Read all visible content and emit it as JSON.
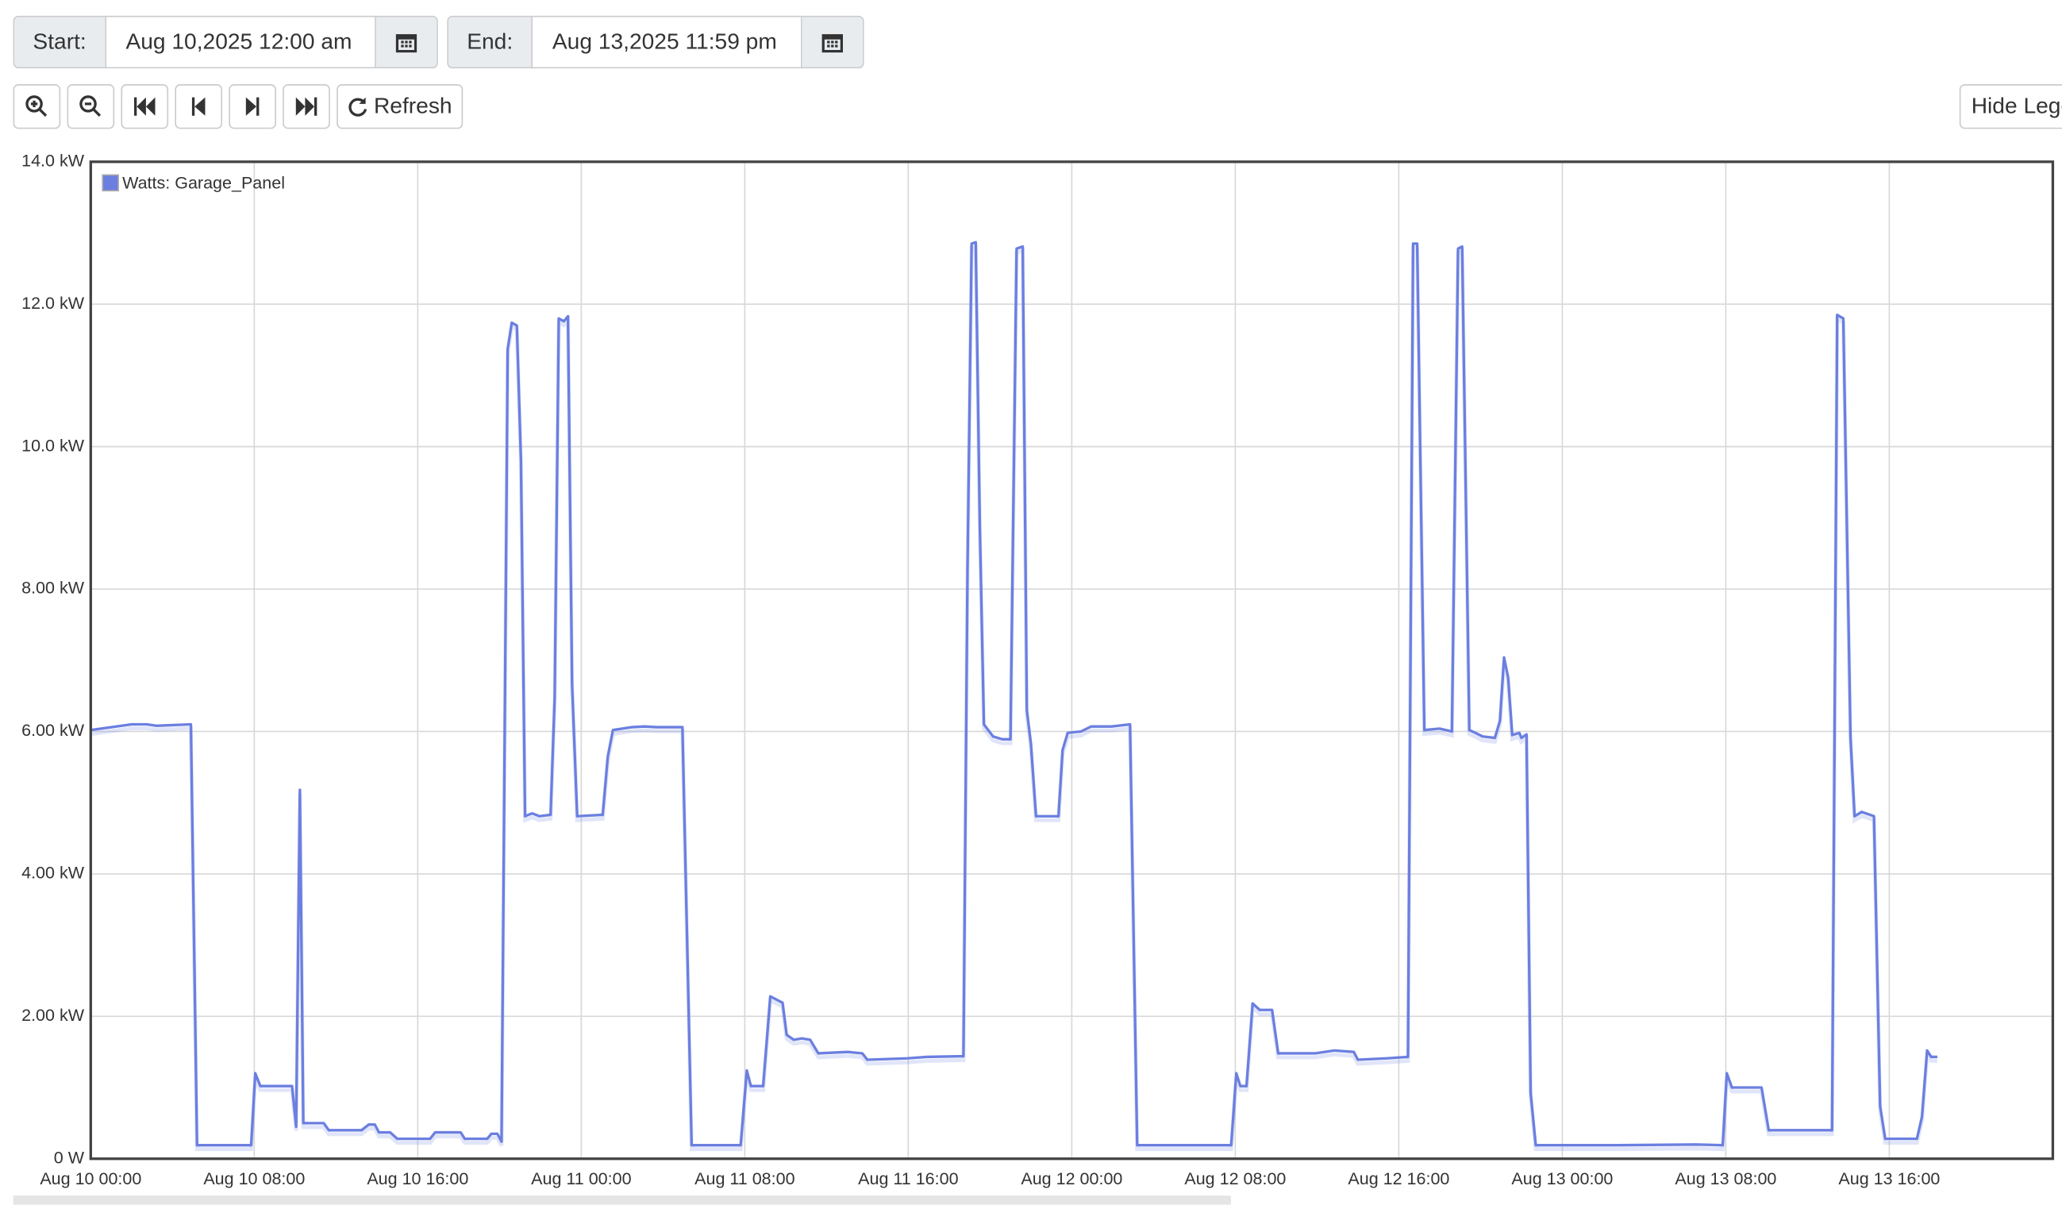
{
  "toolbar": {
    "start_label": "Start:",
    "start_value": "Aug 10,2025 12:00 am",
    "end_label": "End:",
    "end_value": "Aug 13,2025 11:59 pm",
    "refresh": "Refresh",
    "hide_legend": "Hide Legend"
  },
  "chart_data": {
    "type": "line",
    "grid": true,
    "legend": "top-left",
    "xlim": [
      "2025-08-10T00:00",
      "2025-08-14T00:00"
    ],
    "xticks": [
      {
        "value": "2025-08-10T00:00",
        "label": "Aug 10 00:00"
      },
      {
        "value": "2025-08-10T08:00",
        "label": "Aug 10 08:00"
      },
      {
        "value": "2025-08-10T16:00",
        "label": "Aug 10 16:00"
      },
      {
        "value": "2025-08-11T00:00",
        "label": "Aug 11 00:00"
      },
      {
        "value": "2025-08-11T08:00",
        "label": "Aug 11 08:00"
      },
      {
        "value": "2025-08-11T16:00",
        "label": "Aug 11 16:00"
      },
      {
        "value": "2025-08-12T00:00",
        "label": "Aug 12 00:00"
      },
      {
        "value": "2025-08-12T08:00",
        "label": "Aug 12 08:00"
      },
      {
        "value": "2025-08-12T16:00",
        "label": "Aug 12 16:00"
      },
      {
        "value": "2025-08-13T00:00",
        "label": "Aug 13 00:00"
      },
      {
        "value": "2025-08-13T08:00",
        "label": "Aug 13 08:00"
      },
      {
        "value": "2025-08-13T16:00",
        "label": "Aug 13 16:00"
      }
    ],
    "ylim": [
      0,
      14
    ],
    "yticks": [
      {
        "value": 0,
        "label": "0 W"
      },
      {
        "value": 2,
        "label": "2.00 kW"
      },
      {
        "value": 4,
        "label": "4.00 kW"
      },
      {
        "value": 6,
        "label": "6.00 kW"
      },
      {
        "value": 8,
        "label": "8.00 kW"
      },
      {
        "value": 10,
        "label": "10.0 kW"
      },
      {
        "value": 12,
        "label": "12.0 kW"
      },
      {
        "value": 14,
        "label": "14.0 kW"
      }
    ],
    "x": [
      "2025-08-10T00:00",
      "2025-08-10T02:00",
      "2025-08-10T02:45",
      "2025-08-10T03:12",
      "2025-08-10T04:54",
      "2025-08-10T05:12",
      "2025-08-10T07:51",
      "2025-08-10T08:03",
      "2025-08-10T08:18",
      "2025-08-10T09:51",
      "2025-08-10T10:03",
      "2025-08-10T10:14",
      "2025-08-10T10:24",
      "2025-08-10T11:24",
      "2025-08-10T11:39",
      "2025-08-10T13:15",
      "2025-08-10T13:36",
      "2025-08-10T13:54",
      "2025-08-10T14:06",
      "2025-08-10T14:39",
      "2025-08-10T15:00",
      "2025-08-10T16:36",
      "2025-08-10T16:51",
      "2025-08-10T18:06",
      "2025-08-10T18:18",
      "2025-08-10T19:24",
      "2025-08-10T19:36",
      "2025-08-10T19:54",
      "2025-08-10T20:06",
      "2025-08-10T20:24",
      "2025-08-10T20:36",
      "2025-08-10T20:51",
      "2025-08-10T21:03",
      "2025-08-10T21:15",
      "2025-08-10T21:36",
      "2025-08-10T21:57",
      "2025-08-10T22:30",
      "2025-08-10T22:42",
      "2025-08-10T22:54",
      "2025-08-10T23:09",
      "2025-08-10T23:21",
      "2025-08-10T23:33",
      "2025-08-10T23:48",
      "2025-08-11T01:03",
      "2025-08-11T01:18",
      "2025-08-11T01:33",
      "2025-08-11T02:27",
      "2025-08-11T03:06",
      "2025-08-11T03:42",
      "2025-08-11T04:57",
      "2025-08-11T05:24",
      "2025-08-11T07:48",
      "2025-08-11T08:06",
      "2025-08-11T08:18",
      "2025-08-11T08:54",
      "2025-08-11T09:15",
      "2025-08-11T09:51",
      "2025-08-11T10:03",
      "2025-08-11T10:24",
      "2025-08-11T10:48",
      "2025-08-11T11:12",
      "2025-08-11T11:36",
      "2025-08-11T13:03",
      "2025-08-11T13:45",
      "2025-08-11T14:00",
      "2025-08-11T15:57",
      "2025-08-11T16:54",
      "2025-08-11T18:42",
      "2025-08-11T18:54",
      "2025-08-11T19:06",
      "2025-08-11T19:18",
      "2025-08-11T19:30",
      "2025-08-11T19:42",
      "2025-08-11T20:09",
      "2025-08-11T20:36",
      "2025-08-11T21:00",
      "2025-08-11T21:18",
      "2025-08-11T21:36",
      "2025-08-11T21:48",
      "2025-08-11T22:00",
      "2025-08-11T22:15",
      "2025-08-11T22:39",
      "2025-08-11T23:21",
      "2025-08-11T23:33",
      "2025-08-11T23:48",
      "2025-08-12T00:27",
      "2025-08-12T00:57",
      "2025-08-12T01:57",
      "2025-08-12T02:51",
      "2025-08-12T03:12",
      "2025-08-12T07:48",
      "2025-08-12T08:03",
      "2025-08-12T08:15",
      "2025-08-12T08:33",
      "2025-08-12T08:51",
      "2025-08-12T09:12",
      "2025-08-12T09:48",
      "2025-08-12T10:06",
      "2025-08-12T11:54",
      "2025-08-12T12:51",
      "2025-08-12T13:48",
      "2025-08-12T14:00",
      "2025-08-12T15:24",
      "2025-08-12T16:27",
      "2025-08-12T16:42",
      "2025-08-12T16:54",
      "2025-08-12T17:15",
      "2025-08-12T18:00",
      "2025-08-12T18:36",
      "2025-08-12T18:54",
      "2025-08-12T19:06",
      "2025-08-12T19:27",
      "2025-08-12T19:45",
      "2025-08-12T20:06",
      "2025-08-12T20:42",
      "2025-08-12T20:57",
      "2025-08-12T21:09",
      "2025-08-12T21:21",
      "2025-08-12T21:33",
      "2025-08-12T21:54",
      "2025-08-12T22:00",
      "2025-08-12T22:15",
      "2025-08-12T22:27",
      "2025-08-12T22:42",
      "2025-08-13T02:42",
      "2025-08-13T06:33",
      "2025-08-13T07:51",
      "2025-08-13T08:03",
      "2025-08-13T08:18",
      "2025-08-13T09:45",
      "2025-08-13T10:06",
      "2025-08-13T13:12",
      "2025-08-13T13:27",
      "2025-08-13T13:45",
      "2025-08-13T14:06",
      "2025-08-13T14:18",
      "2025-08-13T14:39",
      "2025-08-13T15:15",
      "2025-08-13T15:33",
      "2025-08-13T15:48",
      "2025-08-13T17:21",
      "2025-08-13T17:36",
      "2025-08-13T17:51",
      "2025-08-13T18:03",
      "2025-08-13T18:21"
    ],
    "series": [
      {
        "name": "Watts: Garage_Panel",
        "color": "#6b7fe0",
        "values": [
          6.02,
          6.1,
          6.1,
          6.08,
          6.1,
          0.19,
          0.19,
          1.2,
          1.02,
          1.02,
          0.45,
          5.18,
          0.5,
          0.5,
          0.4,
          0.4,
          0.48,
          0.48,
          0.37,
          0.37,
          0.28,
          0.28,
          0.37,
          0.37,
          0.28,
          0.28,
          0.35,
          0.35,
          0.24,
          11.37,
          11.74,
          11.7,
          9.8,
          4.81,
          4.85,
          4.81,
          4.83,
          6.48,
          11.8,
          11.76,
          11.83,
          6.67,
          4.81,
          4.83,
          5.65,
          6.02,
          6.06,
          6.07,
          6.06,
          6.06,
          0.19,
          0.19,
          1.24,
          1.02,
          1.02,
          2.28,
          2.19,
          1.74,
          1.67,
          1.69,
          1.67,
          1.48,
          1.5,
          1.48,
          1.39,
          1.41,
          1.43,
          1.44,
          8.33,
          12.85,
          12.87,
          8.9,
          6.1,
          5.93,
          5.89,
          5.89,
          12.78,
          12.81,
          6.3,
          5.83,
          4.81,
          4.81,
          4.81,
          5.74,
          5.98,
          6.0,
          6.07,
          6.07,
          6.1,
          0.19,
          0.19,
          1.2,
          1.02,
          1.02,
          2.18,
          2.09,
          2.09,
          1.48,
          1.48,
          1.52,
          1.5,
          1.39,
          1.41,
          1.43,
          12.85,
          12.85,
          6.02,
          6.04,
          6.0,
          12.78,
          12.81,
          6.02,
          5.98,
          5.93,
          5.91,
          6.15,
          7.04,
          6.76,
          5.95,
          5.98,
          5.91,
          5.96,
          0.93,
          0.19,
          0.19,
          0.2,
          0.19,
          1.2,
          1.0,
          1.0,
          0.4,
          0.4,
          11.85,
          11.8,
          5.93,
          4.81,
          4.87,
          4.81,
          0.74,
          0.28,
          0.28,
          0.59,
          1.52,
          1.43,
          1.43
        ]
      }
    ]
  }
}
